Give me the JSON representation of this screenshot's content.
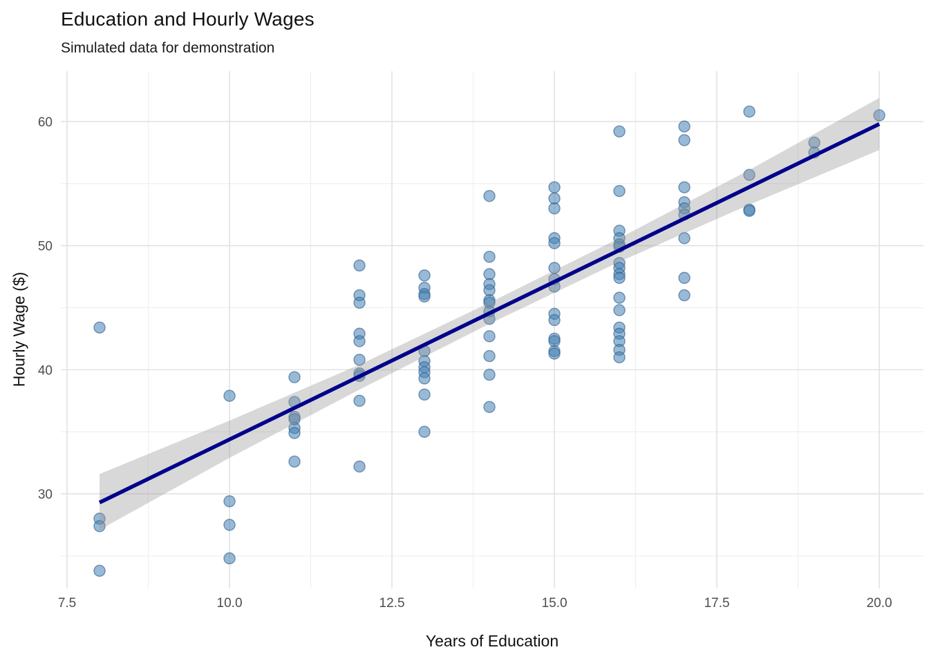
{
  "chart_data": {
    "type": "scatter",
    "title": "Education and Hourly Wages",
    "subtitle": "Simulated data for demonstration",
    "xlabel": "Years of Education",
    "ylabel": "Hourly Wage ($)",
    "xlim": [
      7.404,
      20.68
    ],
    "ylim": [
      22.38,
      64.06
    ],
    "x_ticks": [
      7.5,
      10.0,
      12.5,
      15.0,
      17.5,
      20.0
    ],
    "x_tick_labels": [
      "7.5",
      "10.0",
      "12.5",
      "15.0",
      "17.5",
      "20.0"
    ],
    "x_minor_ticks": [
      8.75,
      11.25,
      13.75,
      16.25,
      18.75
    ],
    "y_ticks": [
      30,
      40,
      50,
      60
    ],
    "y_tick_labels": [
      "30",
      "40",
      "50",
      "60"
    ],
    "y_minor_ticks": [
      25,
      35,
      45,
      55
    ],
    "grid": true,
    "legend": "none",
    "points": [
      [
        8,
        43.4
      ],
      [
        8,
        28.0
      ],
      [
        8,
        27.4
      ],
      [
        8,
        23.8
      ],
      [
        10,
        37.9
      ],
      [
        10,
        29.4
      ],
      [
        10,
        27.5
      ],
      [
        10,
        24.8
      ],
      [
        11,
        39.4
      ],
      [
        11,
        37.4
      ],
      [
        11,
        36.2
      ],
      [
        11,
        36.0
      ],
      [
        11,
        35.3
      ],
      [
        11,
        34.9
      ],
      [
        11,
        32.6
      ],
      [
        12,
        48.4
      ],
      [
        12,
        46.0
      ],
      [
        12,
        45.4
      ],
      [
        12,
        42.9
      ],
      [
        12,
        42.3
      ],
      [
        12,
        40.8
      ],
      [
        12,
        39.7
      ],
      [
        12,
        39.5
      ],
      [
        12,
        37.5
      ],
      [
        12,
        32.2
      ],
      [
        13,
        47.6
      ],
      [
        13,
        46.6
      ],
      [
        13,
        46.1
      ],
      [
        13,
        45.9
      ],
      [
        13,
        41.5
      ],
      [
        13,
        40.7
      ],
      [
        13,
        40.2
      ],
      [
        13,
        39.8
      ],
      [
        13,
        39.3
      ],
      [
        13,
        38.0
      ],
      [
        13,
        35.0
      ],
      [
        14,
        54.0
      ],
      [
        14,
        49.1
      ],
      [
        14,
        47.7
      ],
      [
        14,
        46.9
      ],
      [
        14,
        46.4
      ],
      [
        14,
        45.6
      ],
      [
        14,
        45.4
      ],
      [
        14,
        44.7
      ],
      [
        14,
        44.1
      ],
      [
        14,
        42.7
      ],
      [
        14,
        41.1
      ],
      [
        14,
        39.6
      ],
      [
        14,
        37.0
      ],
      [
        15,
        54.7
      ],
      [
        15,
        53.8
      ],
      [
        15,
        53.0
      ],
      [
        15,
        50.6
      ],
      [
        15,
        50.2
      ],
      [
        15,
        48.2
      ],
      [
        15,
        47.3
      ],
      [
        15,
        46.7
      ],
      [
        15,
        44.5
      ],
      [
        15,
        44.0
      ],
      [
        15,
        42.5
      ],
      [
        15,
        42.3
      ],
      [
        15,
        41.5
      ],
      [
        15,
        41.3
      ],
      [
        16,
        59.2
      ],
      [
        16,
        54.4
      ],
      [
        16,
        51.2
      ],
      [
        16,
        50.6
      ],
      [
        16,
        50.1
      ],
      [
        16,
        49.9
      ],
      [
        16,
        48.6
      ],
      [
        16,
        48.2
      ],
      [
        16,
        47.7
      ],
      [
        16,
        47.4
      ],
      [
        16,
        45.8
      ],
      [
        16,
        44.8
      ],
      [
        16,
        43.4
      ],
      [
        16,
        42.9
      ],
      [
        16,
        42.3
      ],
      [
        16,
        41.6
      ],
      [
        16,
        41.0
      ],
      [
        17,
        59.6
      ],
      [
        17,
        58.5
      ],
      [
        17,
        54.7
      ],
      [
        17,
        53.5
      ],
      [
        17,
        53.0
      ],
      [
        17,
        52.5
      ],
      [
        17,
        50.6
      ],
      [
        17,
        47.4
      ],
      [
        17,
        46.0
      ],
      [
        18,
        60.8
      ],
      [
        18,
        55.7
      ],
      [
        18,
        52.9
      ],
      [
        18,
        52.8
      ],
      [
        19,
        58.3
      ],
      [
        19,
        57.5
      ],
      [
        20,
        60.5
      ]
    ],
    "regression_line": {
      "x1": 8,
      "y1": 29.3,
      "x2": 20,
      "y2": 59.8
    },
    "ci_band": [
      [
        8,
        31.6,
        27.1
      ],
      [
        10,
        35.9,
        32.9
      ],
      [
        12,
        40.4,
        38.4
      ],
      [
        14,
        45.4,
        43.7
      ],
      [
        16,
        50.6,
        48.7
      ],
      [
        18,
        56.1,
        53.3
      ],
      [
        20,
        61.9,
        57.7
      ]
    ],
    "colors": {
      "point_fill": "#4682B4",
      "point_stroke": "#35618e",
      "line": "#00008B",
      "band": "#999999",
      "grid_major": "#e2e2e2",
      "grid_minor": "#eeeeee",
      "tick_text": "#4d4d4d",
      "title_text": "#111111",
      "background": "#ffffff"
    }
  }
}
